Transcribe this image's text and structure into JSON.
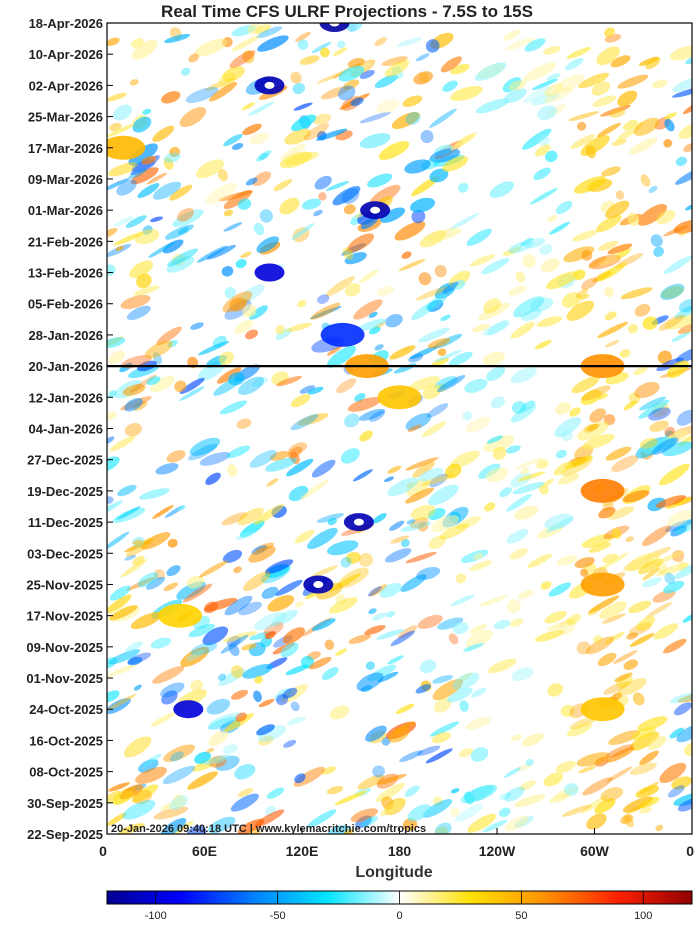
{
  "chart_data": {
    "type": "heatmap",
    "title": "Real Time CFS ULRF Projections - 7.5S to 15S",
    "xlabel": "Longitude",
    "ylabel": "",
    "x_ticks": [
      "0",
      "60E",
      "120E",
      "180",
      "120W",
      "60W",
      "0"
    ],
    "y_ticks": [
      "22-Sep-2025",
      "30-Sep-2025",
      "08-Oct-2025",
      "16-Oct-2025",
      "24-Oct-2025",
      "01-Nov-2025",
      "09-Nov-2025",
      "17-Nov-2025",
      "25-Nov-2025",
      "03-Dec-2025",
      "11-Dec-2025",
      "19-Dec-2025",
      "27-Dec-2025",
      "04-Jan-2026",
      "12-Jan-2026",
      "20-Jan-2026",
      "28-Jan-2026",
      "05-Feb-2026",
      "13-Feb-2026",
      "21-Feb-2026",
      "01-Mar-2026",
      "09-Mar-2026",
      "17-Mar-2026",
      "25-Mar-2026",
      "02-Apr-2026",
      "10-Apr-2026",
      "18-Apr-2026"
    ],
    "current_date": "20-Jan-2026",
    "colorbar": {
      "range": [
        -120,
        120
      ],
      "ticks": [
        -100,
        -50,
        0,
        50,
        100
      ],
      "colors": [
        "#00008f",
        "#0000ff",
        "#0080ff",
        "#00e5ff",
        "#ffffff",
        "#ffe000",
        "#ff9000",
        "#ff2000",
        "#8f0000"
      ]
    },
    "annotation": "20-Jan-2026 09:40:18 UTC | www.kylemacritchie.com/tropics",
    "features": [
      {
        "lon": 305,
        "date": "20-Jan-2026",
        "value": 60
      },
      {
        "lon": 305,
        "date": "19-Dec-2025",
        "value": 65
      },
      {
        "lon": 305,
        "date": "25-Nov-2025",
        "value": 55
      },
      {
        "lon": 305,
        "date": "24-Oct-2025",
        "value": 40
      },
      {
        "lon": 155,
        "date": "11-Dec-2025",
        "value": -110
      },
      {
        "lon": 130,
        "date": "25-Nov-2025",
        "value": -110
      },
      {
        "lon": 50,
        "date": "24-Oct-2025",
        "value": -100
      },
      {
        "lon": 165,
        "date": "01-Mar-2026",
        "value": -110
      },
      {
        "lon": 140,
        "date": "18-Apr-2026",
        "value": -115
      },
      {
        "lon": 100,
        "date": "02-Apr-2026",
        "value": -110
      },
      {
        "lon": 100,
        "date": "13-Feb-2026",
        "value": -100
      },
      {
        "lon": 145,
        "date": "28-Jan-2026",
        "value": -80
      },
      {
        "lon": 160,
        "date": "20-Jan-2026",
        "value": 55
      },
      {
        "lon": 180,
        "date": "12-Jan-2026",
        "value": 40
      },
      {
        "lon": 45,
        "date": "17-Nov-2025",
        "value": 35
      },
      {
        "lon": 10,
        "date": "17-Mar-2026",
        "value": 45
      }
    ]
  }
}
